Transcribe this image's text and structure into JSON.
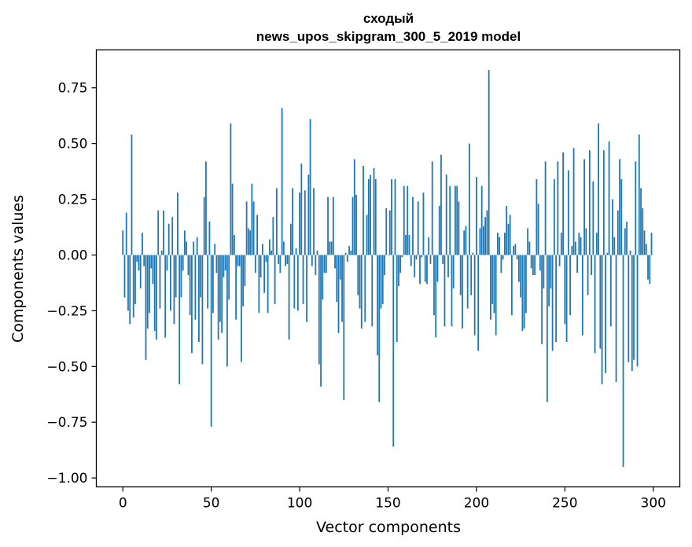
{
  "chart_data": {
    "type": "bar",
    "title": "сходый",
    "subtitle": "news_upos_skipgram_300_5_2019 model",
    "xlabel": "Vector components",
    "ylabel": "Components values",
    "xlim": [
      -15,
      315
    ],
    "ylim": [
      -1.04,
      0.92
    ],
    "xticks": [
      0,
      50,
      100,
      150,
      200,
      250,
      300
    ],
    "xtick_labels": [
      "0",
      "50",
      "100",
      "150",
      "200",
      "250",
      "300"
    ],
    "yticks": [
      -1.0,
      -0.75,
      -0.5,
      -0.25,
      0.0,
      0.25,
      0.5,
      0.75
    ],
    "ytick_labels": [
      "−1.00",
      "−0.75",
      "−0.50",
      "−0.25",
      "0.00",
      "0.25",
      "0.50",
      "0.75"
    ],
    "bar_color": "#1f77b4",
    "x": "indices 0..299",
    "values": [
      0.11,
      -0.19,
      0.19,
      -0.25,
      -0.31,
      0.54,
      -0.28,
      -0.22,
      -0.03,
      -0.07,
      -0.15,
      0.1,
      -0.05,
      -0.47,
      -0.33,
      -0.26,
      -0.06,
      -0.13,
      -0.34,
      -0.38,
      0.2,
      -0.24,
      0.02,
      0.2,
      -0.37,
      -0.07,
      0.14,
      -0.25,
      0.17,
      -0.31,
      -0.19,
      0.28,
      -0.58,
      -0.19,
      -0.07,
      0.11,
      0.06,
      -0.09,
      -0.27,
      -0.44,
      0.06,
      -0.29,
      0.08,
      -0.39,
      -0.19,
      -0.49,
      0.26,
      0.42,
      -0.24,
      0.15,
      -0.77,
      -0.26,
      0.05,
      -0.08,
      -0.38,
      -0.3,
      -0.35,
      -0.1,
      -0.07,
      -0.5,
      -0.2,
      0.59,
      0.32,
      0.09,
      -0.29,
      -0.05,
      -0.05,
      -0.48,
      -0.23,
      -0.14,
      0.24,
      0.12,
      0.11,
      0.32,
      0.24,
      -0.08,
      0.18,
      -0.26,
      -0.1,
      0.05,
      -0.17,
      -0.03,
      -0.26,
      0.07,
      0.02,
      0.17,
      -0.22,
      0.3,
      -0.04,
      -0.08,
      0.66,
      0.06,
      -0.05,
      -0.04,
      -0.38,
      0.14,
      0.3,
      -0.24,
      0.03,
      -0.25,
      0.28,
      0.41,
      -0.22,
      0.29,
      -0.3,
      0.36,
      0.61,
      -0.05,
      0.3,
      -0.09,
      0.02,
      -0.49,
      -0.59,
      -0.2,
      -0.08,
      -0.08,
      0.26,
      0.06,
      0.06,
      0.26,
      -0.06,
      -0.21,
      -0.35,
      -0.11,
      -0.3,
      -0.65,
      0.01,
      -0.03,
      0.04,
      0.02,
      0.26,
      0.43,
      0.27,
      -0.18,
      -0.24,
      -0.33,
      0.4,
      -0.3,
      0.18,
      0.34,
      0.36,
      -0.32,
      0.39,
      0.34,
      -0.45,
      -0.66,
      -0.24,
      -0.22,
      -0.09,
      0.21,
      0.0,
      0.2,
      0.34,
      -0.86,
      0.34,
      -0.39,
      -0.14,
      -0.08,
      -0.01,
      0.31,
      0.09,
      0.31,
      0.09,
      -0.05,
      0.26,
      -0.1,
      -0.02,
      0.24,
      -0.13,
      -0.01,
      0.28,
      -0.12,
      -0.13,
      0.08,
      -0.04,
      0.42,
      -0.27,
      -0.37,
      -0.12,
      0.22,
      0.45,
      -0.04,
      -0.32,
      0.36,
      -0.1,
      0.31,
      -0.32,
      -0.15,
      0.31,
      0.31,
      0.24,
      -0.18,
      -0.33,
      0.11,
      0.13,
      -0.24,
      0.5,
      -0.18,
      0.01,
      -0.36,
      0.35,
      -0.43,
      0.12,
      0.31,
      0.13,
      0.17,
      0.2,
      0.83,
      -0.29,
      -0.22,
      -0.26,
      -0.36,
      0.1,
      0.08,
      -0.08,
      -0.02,
      0.1,
      0.22,
      0.14,
      0.18,
      -0.27,
      0.04,
      0.05,
      -0.02,
      -0.12,
      -0.19,
      -0.34,
      -0.33,
      -0.26,
      0.12,
      0.06,
      -0.06,
      -0.09,
      -0.09,
      0.34,
      0.23,
      -0.07,
      -0.4,
      -0.15,
      0.42,
      -0.66,
      -0.23,
      -0.15,
      -0.43,
      0.34,
      -0.39,
      0.42,
      -0.05,
      0.1,
      0.46,
      -0.31,
      -0.39,
      0.38,
      -0.27,
      0.04,
      0.48,
      0.06,
      -0.08,
      0.1,
      0.08,
      -0.36,
      0.43,
      0.12,
      -0.18,
      0.47,
      -0.09,
      0.33,
      -0.44,
      0.1,
      0.59,
      -0.42,
      -0.58,
      0.47,
      -0.53,
      0.01,
      0.51,
      -0.32,
      0.25,
      0.08,
      -0.57,
      0.2,
      0.43,
      0.34,
      -0.95,
      0.12,
      0.15,
      -0.48,
      0.02,
      -0.52,
      -0.47,
      0.42,
      -0.5,
      0.54,
      0.3,
      0.21,
      0.11,
      0.05,
      -0.11,
      -0.13,
      0.1
    ]
  }
}
